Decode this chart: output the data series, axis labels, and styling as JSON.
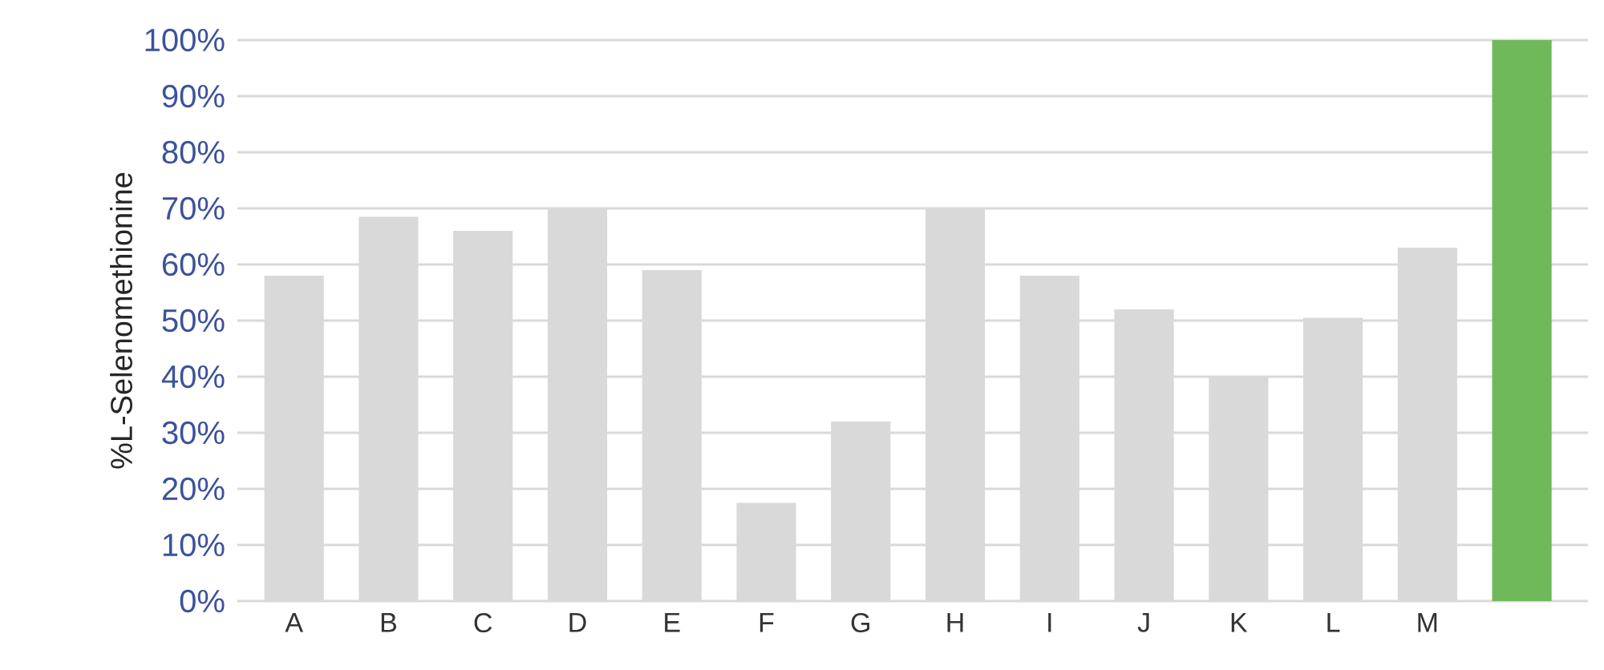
{
  "chart_data": {
    "type": "bar",
    "ylabel": "%L-Selenomethionine",
    "categories": [
      "A",
      "B",
      "C",
      "D",
      "E",
      "F",
      "G",
      "H",
      "I",
      "J",
      "K",
      "L",
      "M",
      null
    ],
    "values": [
      58,
      68.5,
      66,
      70,
      59,
      17.5,
      32,
      70,
      58,
      52,
      40,
      50.5,
      63,
      100
    ],
    "colors": [
      "#d9d9d9",
      "#d9d9d9",
      "#d9d9d9",
      "#d9d9d9",
      "#d9d9d9",
      "#d9d9d9",
      "#d9d9d9",
      "#d9d9d9",
      "#d9d9d9",
      "#d9d9d9",
      "#d9d9d9",
      "#d9d9d9",
      "#d9d9d9",
      "#70b95a"
    ],
    "ylim": [
      0,
      100
    ],
    "yticks": [
      {
        "value": 0,
        "label": "0%"
      },
      {
        "value": 10,
        "label": "10%"
      },
      {
        "value": 20,
        "label": "20%"
      },
      {
        "value": 30,
        "label": "30%"
      },
      {
        "value": 40,
        "label": "40%"
      },
      {
        "value": 50,
        "label": "50%"
      },
      {
        "value": 60,
        "label": "60%"
      },
      {
        "value": 70,
        "label": "70%"
      },
      {
        "value": 80,
        "label": "80%"
      },
      {
        "value": 90,
        "label": "90%"
      },
      {
        "value": 100,
        "label": "100%"
      }
    ],
    "grid": "y"
  }
}
